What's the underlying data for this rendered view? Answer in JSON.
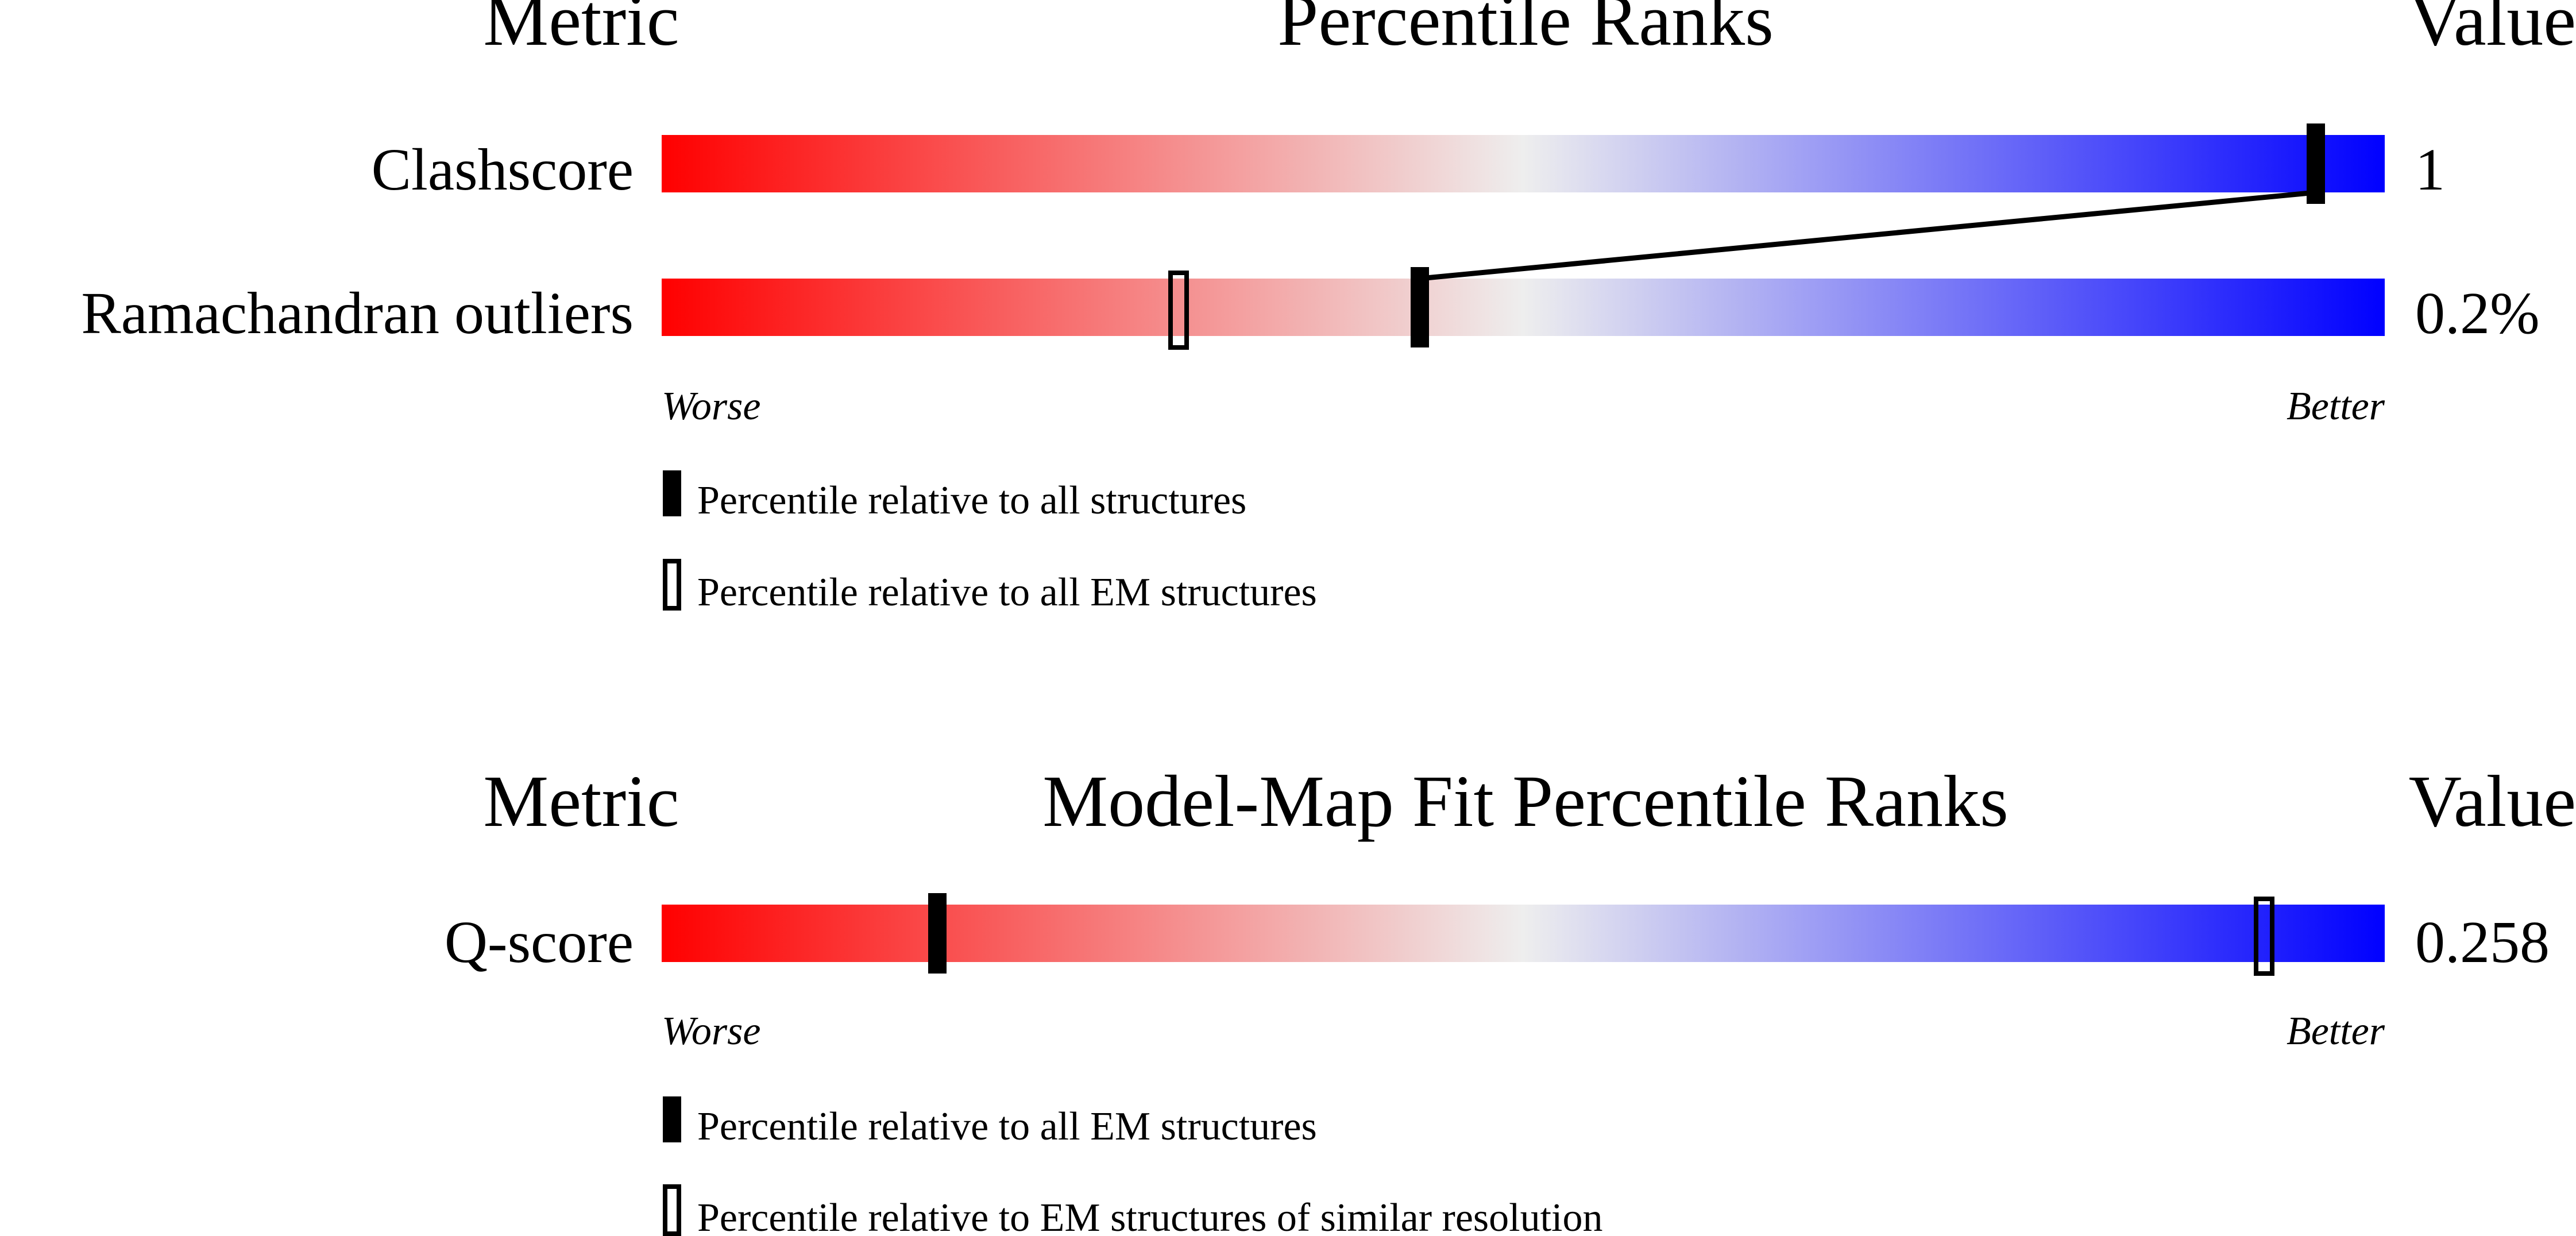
{
  "colors": {
    "worse": "#ff0000",
    "middle": "#eeeeee",
    "better": "#0000ff",
    "marker": "#000000"
  },
  "chart_data": [
    {
      "type": "percentile_bars",
      "header": {
        "metric": "Metric",
        "title": "Percentile Ranks",
        "value": "Value"
      },
      "scale": {
        "worse": "Worse",
        "better": "Better",
        "range": [
          0,
          100
        ]
      },
      "rows": [
        {
          "label": "Clashscore",
          "value": "1",
          "markers": [
            {
              "key": "all",
              "percentile": 96
            }
          ]
        },
        {
          "label": "Ramachandran outliers",
          "value": "0.2%",
          "markers": [
            {
              "key": "em",
              "percentile": 30
            },
            {
              "key": "all",
              "percentile": 44
            }
          ]
        }
      ],
      "legend": [
        {
          "key": "all",
          "style": "filled",
          "text": "Percentile relative to all structures"
        },
        {
          "key": "em",
          "style": "outline",
          "text": "Percentile relative to all EM structures"
        }
      ]
    },
    {
      "type": "percentile_bars",
      "header": {
        "metric": "Metric",
        "title": "Model-Map Fit Percentile Ranks",
        "value": "Value"
      },
      "scale": {
        "worse": "Worse",
        "better": "Better",
        "range": [
          0,
          100
        ]
      },
      "rows": [
        {
          "label": "Q-score",
          "value": "0.258",
          "markers": [
            {
              "key": "em",
              "percentile": 16
            },
            {
              "key": "res",
              "percentile": 93
            }
          ]
        }
      ],
      "legend": [
        {
          "key": "em",
          "style": "filled",
          "text": "Percentile relative to all EM structures"
        },
        {
          "key": "res",
          "style": "outline",
          "text": "Percentile relative to EM structures of similar resolution"
        }
      ]
    }
  ]
}
